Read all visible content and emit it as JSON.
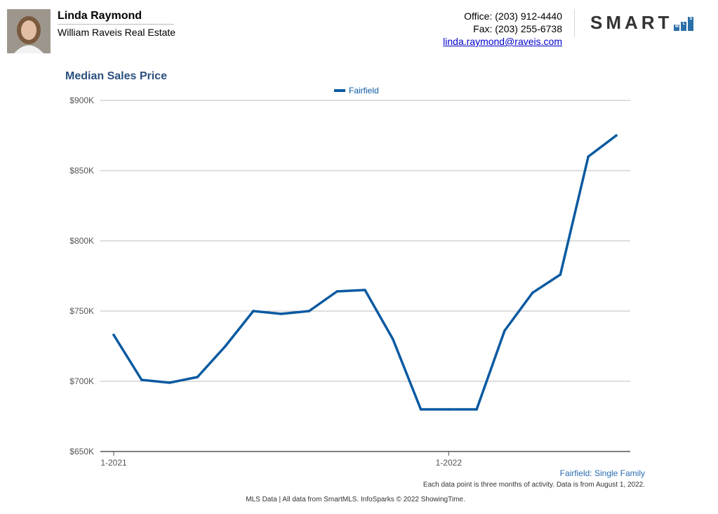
{
  "agent": {
    "name": "Linda Raymond",
    "company": "William Raveis Real Estate"
  },
  "contact": {
    "office": "Office: (203) 912-4440",
    "fax": "Fax: (203) 255-6738",
    "email": "linda.raymond@raveis.com"
  },
  "logo": {
    "word": "SMART",
    "letters": [
      "M",
      "L",
      "S"
    ]
  },
  "colors": {
    "series": "#0b5aa1",
    "title": "#2b4f7e",
    "subtitle": "#2b6cb0"
  },
  "chart_data": {
    "type": "line",
    "title": "Median Sales Price",
    "xlabel": "",
    "ylabel": "",
    "ylim": [
      650000,
      900000
    ],
    "yticks": [
      900000,
      850000,
      800000,
      750000,
      700000,
      650000
    ],
    "ytick_labels": [
      "$900K",
      "$850K",
      "$800K",
      "$750K",
      "$700K",
      "$650K"
    ],
    "xticks": [
      "2021-01",
      "2022-01"
    ],
    "xtick_labels": [
      "1-2021",
      "1-2022"
    ],
    "x": [
      "2021-01",
      "2021-02",
      "2021-03",
      "2021-04",
      "2021-05",
      "2021-06",
      "2021-07",
      "2021-08",
      "2021-09",
      "2021-10",
      "2021-11",
      "2021-12",
      "2022-01",
      "2022-02",
      "2022-03",
      "2022-04",
      "2022-05",
      "2022-06",
      "2022-07"
    ],
    "grid": true,
    "legend": "top-center",
    "series": [
      {
        "name": "Fairfield",
        "values": [
          733000,
          701000,
          699000,
          703000,
          725000,
          750000,
          748000,
          750000,
          764000,
          765000,
          730000,
          680000,
          680000,
          680000,
          736000,
          763000,
          776000,
          860000,
          875000
        ]
      }
    ]
  },
  "footer": {
    "subtitle": "Fairfield: Single Family",
    "note": "Each data point is three months of activity. Data is from August 1, 2022.",
    "source": "MLS Data | All data from SmartMLS. InfoSparks © 2022 ShowingTime."
  }
}
